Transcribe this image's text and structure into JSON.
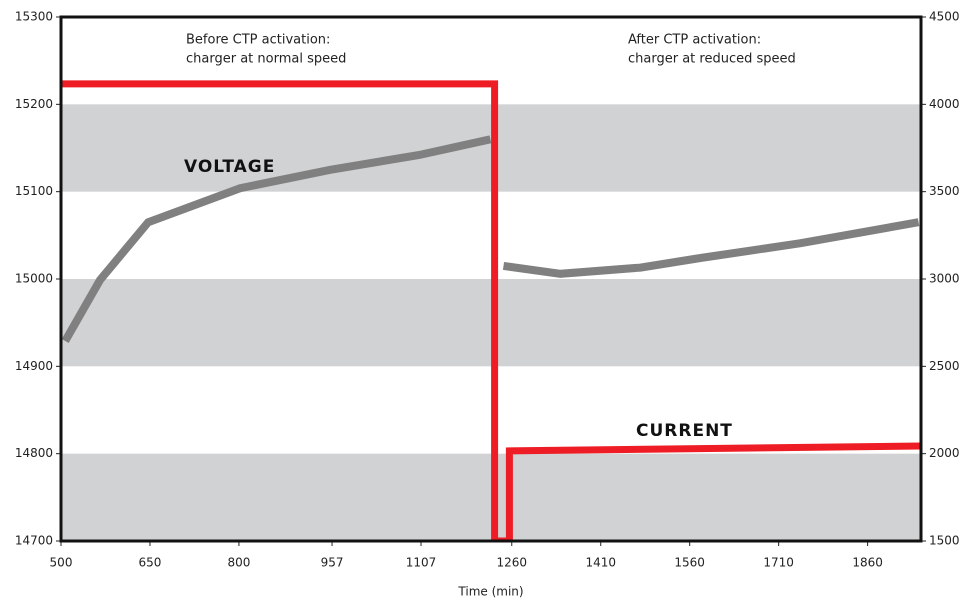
{
  "chart_data": {
    "type": "line",
    "xlabel": "Time (min)",
    "xlim": [
      500,
      1950
    ],
    "xticks": [
      500,
      650,
      800,
      957,
      1107,
      1260,
      1410,
      1560,
      1710,
      1860
    ],
    "ylim": [
      14700,
      15300
    ],
    "yticks": [
      14700,
      14800,
      14900,
      15000,
      15100,
      15200,
      15300
    ],
    "y2lim": [
      1500,
      4500
    ],
    "y2ticks": [
      1500,
      2000,
      2500,
      3000,
      3500,
      4000,
      4500
    ],
    "shaded_bands": true,
    "annotations": [
      "Before CTP activation:",
      "charger at normal speed",
      "After CTP activation:",
      "charger at reduced speed",
      "VOLTAGE",
      "CURRENT"
    ],
    "series": [
      {
        "name": "VOLTAGE",
        "color": "#808080",
        "x": [
          507,
          566,
          647,
          802,
          954,
          1104,
          1224,
          1246,
          1246,
          1342,
          1477,
          1578,
          1747,
          1946
        ],
        "values": [
          14929,
          14999,
          15065,
          15104,
          15125,
          15142,
          15160,
          null,
          15015,
          15006,
          15013,
          15024,
          15041,
          15065
        ]
      },
      {
        "name": "CURRENT",
        "color": "#ee1c25",
        "axis": "y2",
        "x": [
          500,
          1231,
          1231,
          1256,
          1256,
          1950
        ],
        "values": [
          4117,
          4117,
          1500,
          1500,
          2016,
          2044
        ]
      }
    ]
  }
}
